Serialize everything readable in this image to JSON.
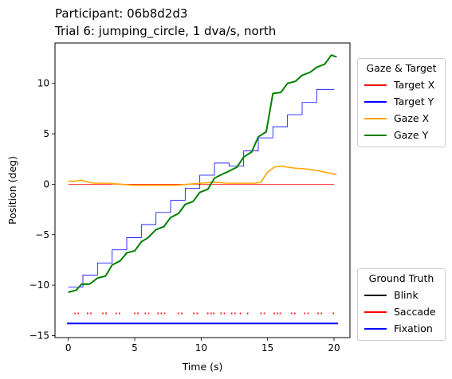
{
  "title_line1": "Participant: 06b8d2d3",
  "title_line2": "Trial 6: jumping_circle, 1 dva/s, north",
  "chart_data": {
    "type": "line",
    "title": "Participant: 06b8d2d3 / Trial 6: jumping_circle, 1 dva/s, north",
    "xlabel": "Time (s)",
    "ylabel": "Position (deg)",
    "xlim": [
      -1.0,
      21.2
    ],
    "ylim": [
      -15.2,
      14.0
    ],
    "xticks": [
      0,
      5,
      10,
      15,
      20
    ],
    "yticks": [
      -15,
      -10,
      -5,
      0,
      5,
      10
    ],
    "grid": false,
    "series": [
      {
        "name": "Target X",
        "color": "#ff0000",
        "x": [
          0,
          20
        ],
        "y": [
          0,
          0
        ]
      },
      {
        "name": "Target Y",
        "color": "#0000ff",
        "style": "step",
        "x": [
          0,
          1.1,
          2.2,
          3.3,
          4.4,
          5.5,
          6.6,
          7.7,
          8.8,
          9.9,
          11.0,
          12.1,
          13.2,
          14.3,
          15.4,
          16.5,
          17.6,
          18.7,
          20.0
        ],
        "y": [
          -10.2,
          -9.0,
          -7.8,
          -6.5,
          -5.3,
          -4.0,
          -2.8,
          -1.6,
          -0.4,
          0.9,
          2.1,
          1.8,
          3.3,
          4.6,
          5.7,
          6.9,
          8.1,
          9.4,
          9.4
        ]
      },
      {
        "name": "Gaze X",
        "color": "#ffa500",
        "x": [
          0,
          0.5,
          1.0,
          1.5,
          2.0,
          3.0,
          4.0,
          5.0,
          6.0,
          7.0,
          8.0,
          9.0,
          10.0,
          11.0,
          12.0,
          13.0,
          14.0,
          14.5,
          15.0,
          15.5,
          16.0,
          17.0,
          18.0,
          19.0,
          20.0,
          20.2
        ],
        "y": [
          0.3,
          0.3,
          0.4,
          0.2,
          0.1,
          0.1,
          0.0,
          -0.1,
          -0.1,
          -0.1,
          -0.1,
          0.0,
          0.1,
          0.2,
          0.1,
          0.1,
          0.1,
          0.2,
          1.2,
          1.7,
          1.8,
          1.6,
          1.5,
          1.3,
          1.0,
          1.0
        ]
      },
      {
        "name": "Gaze Y",
        "color": "#008000",
        "x": [
          0,
          0.6,
          1.0,
          1.6,
          2.2,
          2.8,
          3.3,
          3.9,
          4.4,
          5.0,
          5.5,
          6.0,
          6.6,
          7.2,
          7.7,
          8.3,
          8.8,
          9.4,
          9.9,
          10.5,
          11.0,
          11.6,
          12.1,
          12.7,
          13.2,
          13.8,
          14.3,
          14.9,
          15.4,
          16.0,
          16.5,
          17.1,
          17.6,
          18.2,
          18.7,
          19.3,
          19.8,
          20.2
        ],
        "y": [
          -10.7,
          -10.5,
          -9.9,
          -9.9,
          -9.3,
          -9.1,
          -8.0,
          -7.6,
          -6.8,
          -6.6,
          -5.7,
          -5.3,
          -4.5,
          -4.2,
          -3.3,
          -2.9,
          -2.0,
          -1.7,
          -0.8,
          -0.5,
          0.6,
          1.0,
          1.3,
          1.7,
          2.7,
          3.2,
          4.7,
          5.2,
          9.0,
          9.1,
          10.0,
          10.2,
          10.8,
          11.1,
          11.6,
          11.9,
          12.8,
          12.6
        ]
      }
    ],
    "ground_truth": {
      "saccade_y": -12.8,
      "fixation_y": -13.8,
      "saccade_times": [
        0.5,
        0.75,
        1.45,
        1.7,
        2.6,
        2.85,
        3.6,
        3.85,
        5.0,
        5.25,
        5.8,
        6.05,
        6.75,
        7.0,
        7.25,
        8.3,
        8.55,
        9.45,
        9.7,
        10.5,
        10.75,
        10.95,
        11.5,
        11.75,
        12.3,
        12.55,
        12.95,
        13.5,
        14.5,
        14.75,
        15.5,
        15.75,
        15.95,
        16.8,
        17.05,
        17.8,
        18.05,
        18.8,
        19.05,
        19.95
      ],
      "fixation_range": [
        -0.1,
        20.3
      ]
    },
    "legends": [
      {
        "title": "Gaze & Target",
        "placement": "upper-right-outside",
        "entries": [
          {
            "label": "Target X",
            "color": "#ff0000"
          },
          {
            "label": "Target Y",
            "color": "#0000ff"
          },
          {
            "label": "Gaze X",
            "color": "#ffa500"
          },
          {
            "label": "Gaze Y",
            "color": "#008000"
          }
        ]
      },
      {
        "title": "Ground Truth",
        "placement": "lower-right-outside",
        "entries": [
          {
            "label": "Blink",
            "color": "#000000"
          },
          {
            "label": "Saccade",
            "color": "#ff0000"
          },
          {
            "label": "Fixation",
            "color": "#0000ff"
          }
        ]
      }
    ]
  }
}
